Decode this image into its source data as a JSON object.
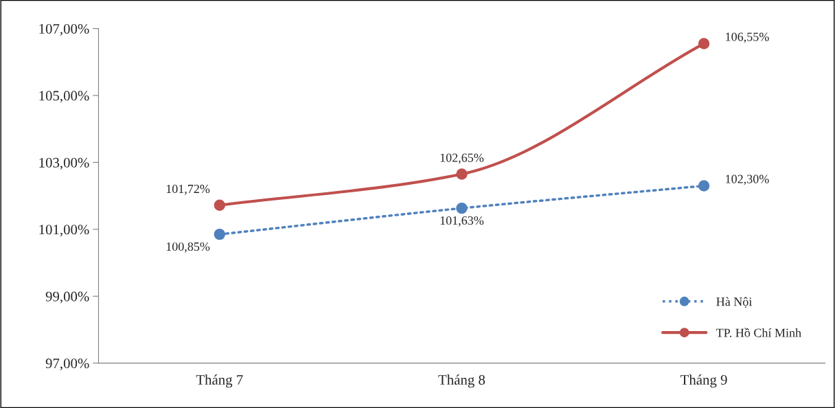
{
  "chart_data": {
    "type": "line",
    "categories": [
      "Tháng 7",
      "Tháng 8",
      "Tháng 9"
    ],
    "series": [
      {
        "name": "Hà Nội",
        "color": "#4f81bd",
        "values": [
          100.85,
          101.63,
          102.3
        ],
        "value_labels": [
          "100,85%",
          "101,63%",
          "102,30%"
        ],
        "line_style": "dotted"
      },
      {
        "name": "TP. Hồ Chí Minh",
        "color": "#c0504d",
        "values": [
          101.72,
          102.65,
          106.55
        ],
        "value_labels": [
          "101,72%",
          "102,65%",
          "106,55%"
        ],
        "line_style": "solid"
      }
    ],
    "ylim": [
      97,
      107
    ],
    "yticks": [
      {
        "value": 97,
        "label": "97,00%"
      },
      {
        "value": 99,
        "label": "99,00%"
      },
      {
        "value": 101,
        "label": "101,00%"
      },
      {
        "value": 103,
        "label": "103,00%"
      },
      {
        "value": 105,
        "label": "105,00%"
      },
      {
        "value": 107,
        "label": "107,00%"
      }
    ],
    "marker": "circle",
    "grid": false,
    "legend": "bottom right"
  }
}
